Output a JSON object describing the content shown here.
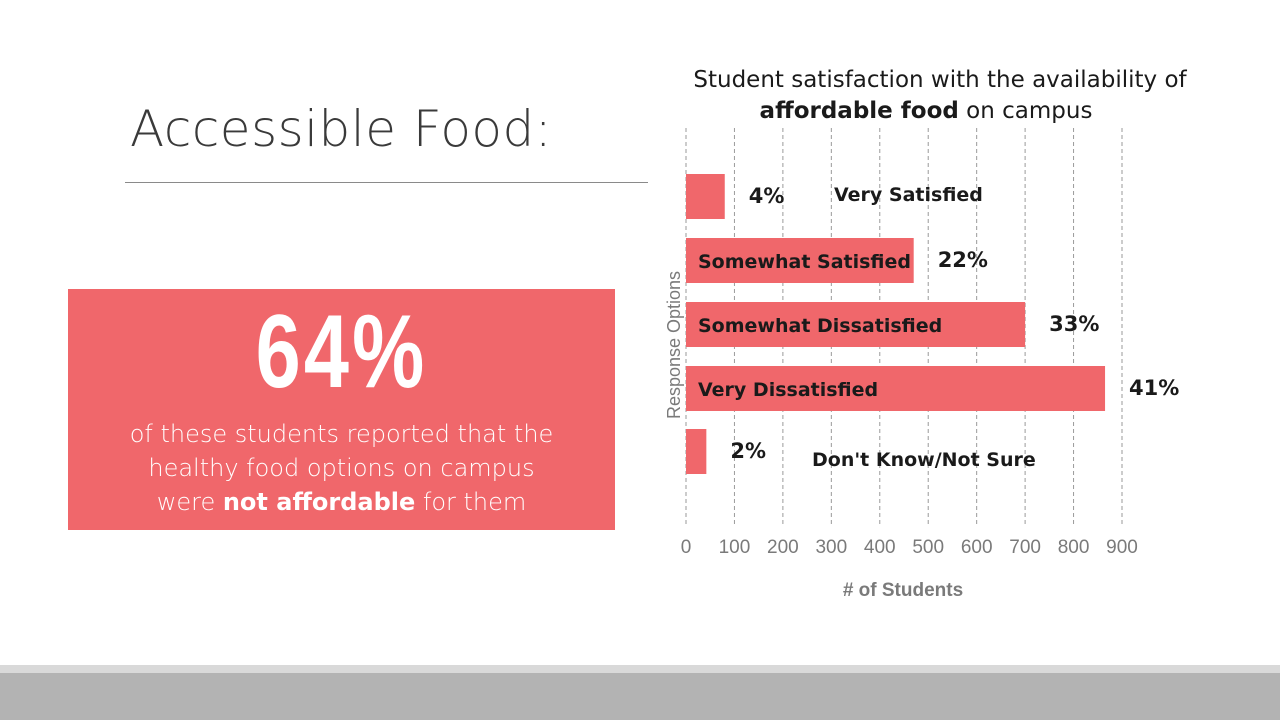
{
  "slide": {
    "title": "Accessible Food:"
  },
  "callout": {
    "number": "64%",
    "caption_line1": "of these students reported that the",
    "caption_line2": "healthy food options on campus",
    "caption_line3_pre": "were ",
    "caption_line3_bold": "not affordable",
    "caption_line3_post": " for them"
  },
  "colors": {
    "accent": "#f0676b",
    "text_dark": "#1a1a1a",
    "axis_text": "#7a7a7a"
  },
  "chart_data": {
    "type": "bar",
    "orientation": "horizontal",
    "title_line1": "Student satisfaction with the availability of",
    "title_line2_bold": "affordable food",
    "title_line2_rest": " on campus",
    "xlabel": "# of Students",
    "ylabel": "Response Options",
    "xlim": [
      0,
      900
    ],
    "xticks": [
      0,
      100,
      200,
      300,
      400,
      500,
      600,
      700,
      800,
      900
    ],
    "grid": true,
    "categories": [
      "Very Satisfied",
      "Somewhat Satisfied",
      "Somewhat Dissatisfied",
      "Very Dissatisfied",
      "Don't Know/Not Sure"
    ],
    "values": [
      80,
      470,
      700,
      865,
      42
    ],
    "percent_labels": [
      "4%",
      "22%",
      "33%",
      "41%",
      "2%"
    ]
  }
}
